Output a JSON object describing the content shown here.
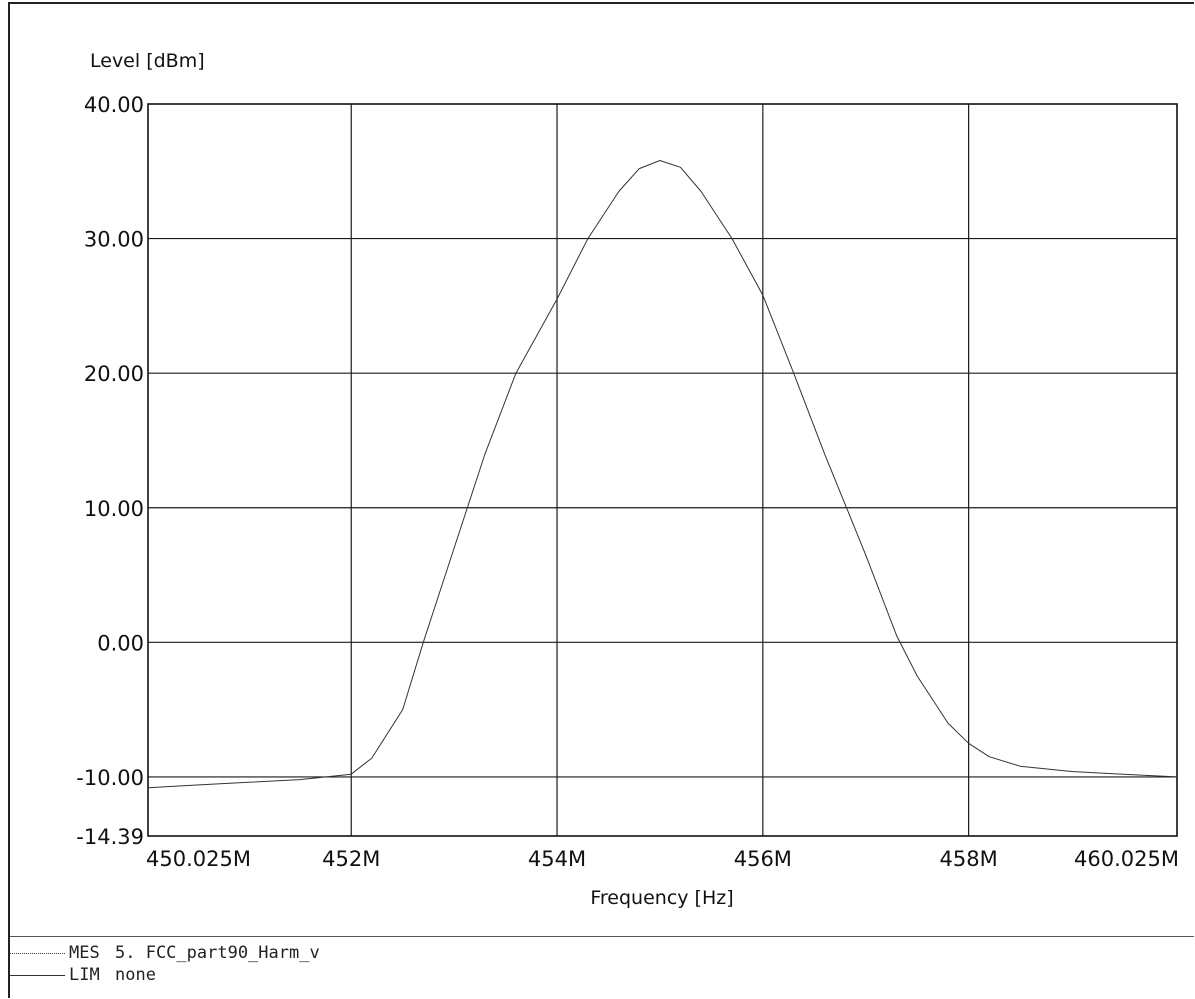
{
  "chart_data": {
    "type": "line",
    "ylabel": "Level [dBm]",
    "xlabel": "Frequency [Hz]",
    "ylim": [
      -14.39,
      40.0
    ],
    "xlim": [
      450.025,
      460.025
    ],
    "y_ticks": [
      "40.00",
      "30.00",
      "20.00",
      "10.00",
      "0.00",
      "-10.00",
      "-14.39"
    ],
    "y_tick_values": [
      40.0,
      30.0,
      20.0,
      10.0,
      0.0,
      -10.0,
      -14.39
    ],
    "x_ticks": [
      "450.025M",
      "452M",
      "454M",
      "456M",
      "458M",
      "460.025M"
    ],
    "x_tick_values": [
      450.025,
      452.0,
      454.0,
      456.0,
      458.0,
      460.025
    ],
    "grid": true,
    "series": [
      {
        "code": "MES",
        "x": [
          450.025,
          450.5,
          451.0,
          451.5,
          452.0,
          452.2,
          452.5,
          452.7,
          453.0,
          453.3,
          453.6,
          454.0,
          454.3,
          454.6,
          454.8,
          455.0,
          455.2,
          455.4,
          455.7,
          456.0,
          456.3,
          456.6,
          457.0,
          457.3,
          457.5,
          457.8,
          458.0,
          458.2,
          458.5,
          459.0,
          459.5,
          460.025
        ],
        "y": [
          -10.8,
          -10.6,
          -10.4,
          -10.2,
          -9.8,
          -8.6,
          -5.0,
          0.0,
          7.0,
          14.0,
          20.0,
          25.5,
          30.0,
          33.5,
          35.2,
          35.8,
          35.3,
          33.5,
          30.0,
          25.8,
          20.0,
          14.0,
          6.5,
          0.5,
          -2.5,
          -6.0,
          -7.5,
          -8.5,
          -9.2,
          -9.6,
          -9.8,
          -10.0
        ]
      }
    ]
  },
  "legend": [
    {
      "code": "MES",
      "text": "5. FCC_part90_Harm_v"
    },
    {
      "code": "LIM",
      "text": "none"
    }
  ],
  "colors": {
    "trace": "#333333",
    "grid": "#1a1a1a",
    "frame": "#111111"
  }
}
